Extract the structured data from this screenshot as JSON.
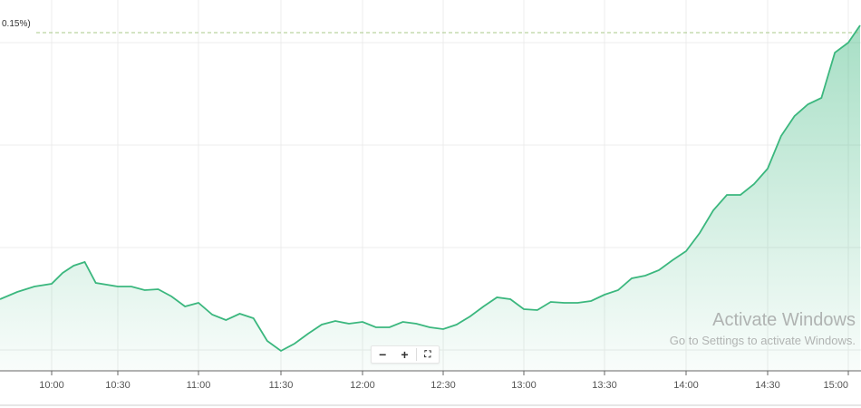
{
  "chart_data": {
    "type": "area",
    "title": "",
    "xlabel": "",
    "ylabel": "",
    "grid": true,
    "line_color": "#3bb77e",
    "fill_color": "#3bb77e",
    "reference_line": {
      "label": "0.15%)",
      "value": 36.4,
      "style": "dashed",
      "color": "#a9c98a"
    },
    "y_gridlines": [
      35.3,
      24.0,
      12.7,
      1.4
    ],
    "x_ticks": [
      "10:00",
      "10:30",
      "11:00",
      "11:30",
      "12:00",
      "12:30",
      "13:00",
      "13:30",
      "14:00",
      "14:30",
      "15:00"
    ],
    "series": [
      {
        "x": [
          "9:45",
          "9:50",
          "9:55",
          "10:00",
          "10:05",
          "10:10",
          "10:15",
          "10:20",
          "10:25",
          "10:30",
          "10:35",
          "10:40",
          "10:45",
          "10:50",
          "10:55",
          "11:00",
          "11:05",
          "11:10",
          "11:15",
          "11:20",
          "11:25",
          "11:30",
          "11:35",
          "11:40",
          "11:45",
          "11:50",
          "11:55",
          "12:00",
          "12:05",
          "12:10",
          "12:15",
          "12:20",
          "12:25",
          "12:30",
          "12:35",
          "12:40",
          "12:45",
          "12:50",
          "12:55",
          "13:00",
          "13:05",
          "13:10",
          "13:15",
          "13:20",
          "13:25",
          "13:30",
          "13:35",
          "13:40",
          "13:45",
          "13:50",
          "13:55",
          "14:00",
          "14:05",
          "14:10",
          "14:15",
          "14:20",
          "14:25",
          "14:30",
          "14:35",
          "14:40",
          "14:45",
          "14:50",
          "14:55",
          "15:00",
          "15:05"
        ],
        "values": [
          7.0,
          7.8,
          8.4,
          8.7,
          9.9,
          10.7,
          11.1,
          8.8,
          8.6,
          8.4,
          8.4,
          8.0,
          8.1,
          7.3,
          6.2,
          6.6,
          5.3,
          4.7,
          5.4,
          4.9,
          2.4,
          1.3,
          2.1,
          3.2,
          4.2,
          4.6,
          4.3,
          4.5,
          3.9,
          3.9,
          4.5,
          4.3,
          3.9,
          3.7,
          4.2,
          5.1,
          6.2,
          7.2,
          7.0,
          5.9,
          5.8,
          6.7,
          6.6,
          6.6,
          6.8,
          7.5,
          8.0,
          9.3,
          9.6,
          10.2,
          11.3,
          12.3,
          14.3,
          16.8,
          18.5,
          18.5,
          19.7,
          21.4,
          25.0,
          27.2,
          28.5,
          29.2,
          34.2,
          35.3,
          37.2
        ]
      }
    ]
  },
  "controls": {
    "zoom_out": "−",
    "zoom_in": "+",
    "fullscreen": "⛶"
  },
  "watermark": {
    "line1": "Activate Windows",
    "line2": "Go to Settings to activate Windows."
  }
}
